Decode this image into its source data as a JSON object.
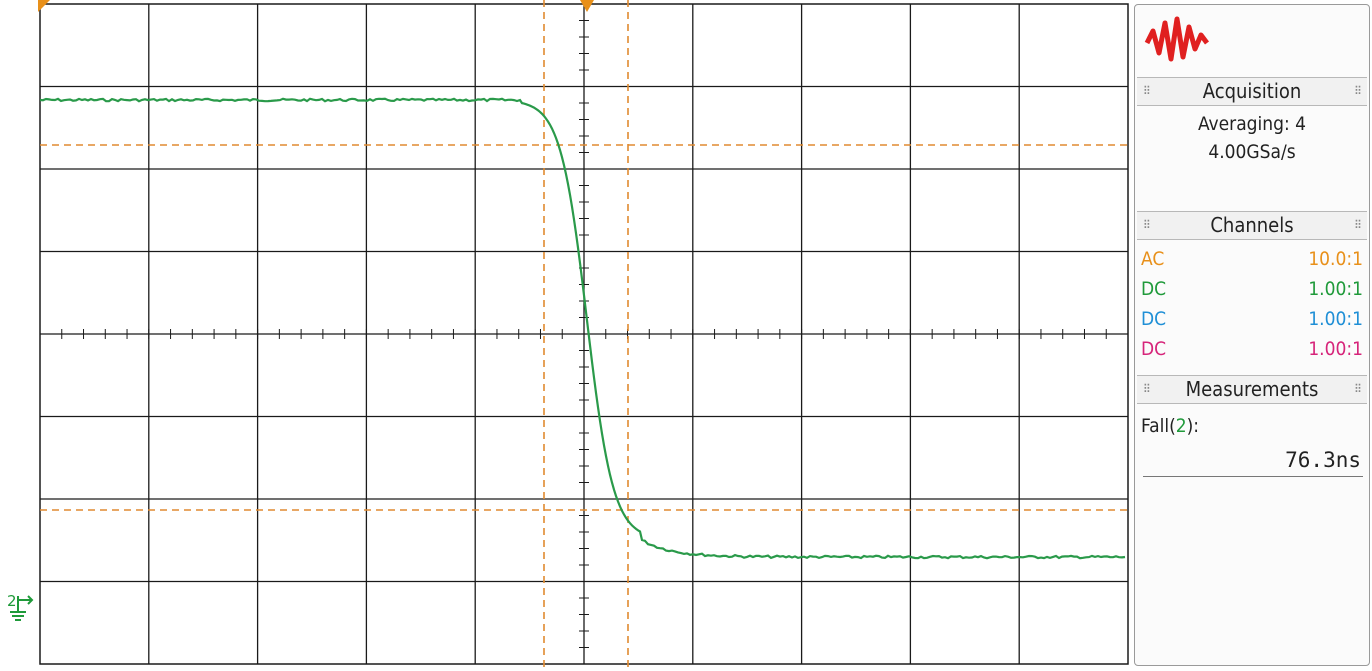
{
  "acquisition": {
    "header": "Acquisition",
    "mode": "Averaging: 4",
    "rate": "4.00GSa/s"
  },
  "channels": {
    "header": "Channels",
    "rows": [
      {
        "coupling": "AC",
        "probe": "10.0:1",
        "color": "#e8901a"
      },
      {
        "coupling": "DC",
        "probe": "1.00:1",
        "color": "#1f9a3a"
      },
      {
        "coupling": "DC",
        "probe": "1.00:1",
        "color": "#1f8fd6"
      },
      {
        "coupling": "DC",
        "probe": "1.00:1",
        "color": "#d6247a"
      }
    ]
  },
  "measurements": {
    "header": "Measurements",
    "name": "Fall(",
    "channel": "2",
    "name_end": "):",
    "value": "76.3ns"
  },
  "ground_marker": {
    "channel": "2",
    "icon": "ground-icon"
  },
  "colors": {
    "trace": "#2a9a4a",
    "cursor": "#e08a30",
    "grid": "#1a1a1a",
    "logo": "#e02020"
  }
}
